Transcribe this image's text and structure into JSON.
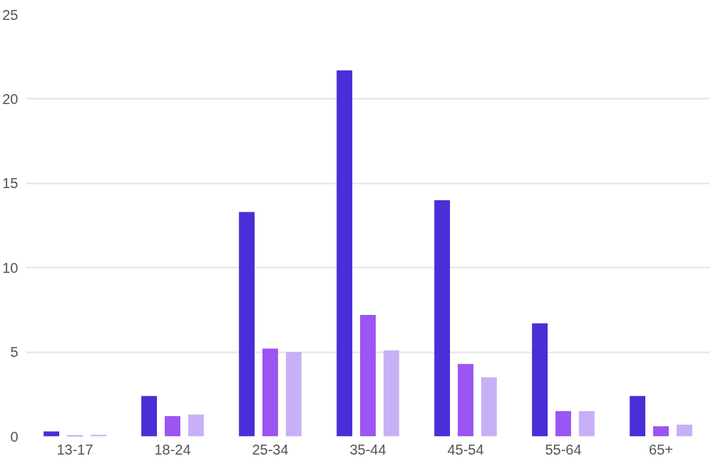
{
  "chart_data": {
    "type": "bar",
    "categories": [
      "13-17",
      "18-24",
      "25-34",
      "35-44",
      "45-54",
      "55-64",
      "65+"
    ],
    "series": [
      {
        "color": "#4a2ed8",
        "values": [
          0.3,
          2.4,
          13.3,
          21.7,
          14.0,
          6.7,
          2.4
        ]
      },
      {
        "color": "#9b55f2",
        "values": [
          0.05,
          1.2,
          5.2,
          7.2,
          4.3,
          1.5,
          0.6
        ]
      },
      {
        "color": "#c8b0f7",
        "values": [
          0.1,
          1.3,
          5.0,
          5.1,
          3.5,
          1.5,
          0.7
        ]
      }
    ],
    "ylim": [
      0,
      25
    ],
    "yticks": [
      0,
      5,
      10,
      15,
      20,
      25
    ],
    "grid": "y"
  }
}
